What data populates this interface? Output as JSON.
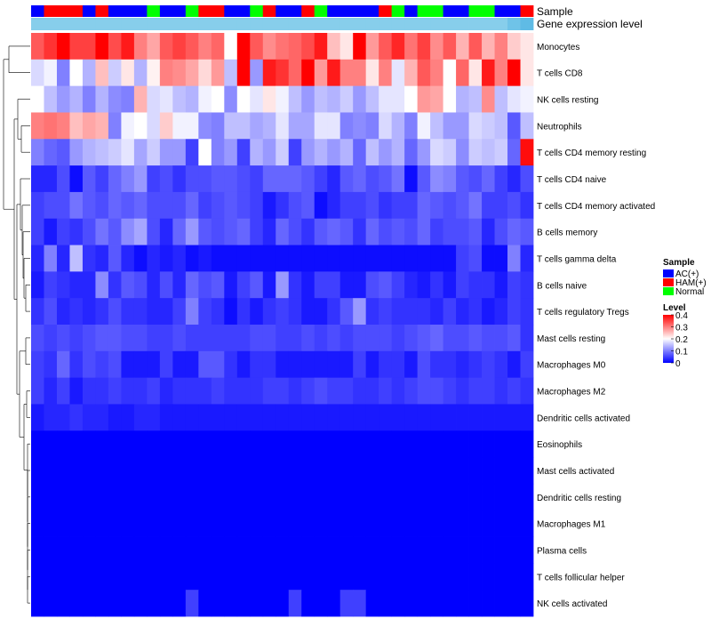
{
  "chart_data": {
    "type": "heatmap",
    "title": "",
    "annotation_labels": {
      "sample": "Sample",
      "gene_expression": "Gene expression level"
    },
    "sample_annotation": [
      "AC",
      "HAM",
      "HAM",
      "HAM",
      "AC",
      "HAM",
      "AC",
      "AC",
      "AC",
      "Normal",
      "AC",
      "AC",
      "Normal",
      "HAM",
      "HAM",
      "AC",
      "AC",
      "Normal",
      "HAM",
      "AC",
      "AC",
      "HAM",
      "Normal",
      "AC",
      "AC",
      "AC",
      "AC",
      "HAM",
      "Normal",
      "AC",
      "Normal",
      "Normal",
      "AC",
      "AC",
      "Normal",
      "Normal",
      "AC",
      "AC",
      "HAM"
    ],
    "sample_colors": {
      "AC": "#0000ff",
      "HAM": "#ff0000",
      "Normal": "#00ff00"
    },
    "expression_colors": [
      "#87ceeb",
      "#87ceeb",
      "#87ceeb",
      "#87ceeb",
      "#87ceeb",
      "#87ceeb",
      "#87ceeb",
      "#87ceeb",
      "#87ceeb",
      "#87ceeb",
      "#87ceeb",
      "#87ceeb",
      "#87ceeb",
      "#87ceeb",
      "#87ceeb",
      "#87ceeb",
      "#87ceeb",
      "#87ceeb",
      "#87ceeb",
      "#87ceeb",
      "#87ceeb",
      "#87ceeb",
      "#87ceeb",
      "#87ceeb",
      "#87ceeb",
      "#87ceeb",
      "#87ceeb",
      "#87ceeb",
      "#87ceeb",
      "#87ceeb",
      "#87ceeb",
      "#87ceeb",
      "#87ceeb",
      "#87ceeb",
      "#87ceeb",
      "#87ceeb",
      "#87ceeb",
      "#6fc3e8",
      "#5fbbe5"
    ],
    "rows": [
      {
        "label": "Monocytes",
        "values": [
          0.33,
          0.36,
          0.4,
          0.35,
          0.35,
          0.4,
          0.34,
          0.38,
          0.3,
          0.27,
          0.33,
          0.35,
          0.33,
          0.3,
          0.32,
          0.2,
          0.4,
          0.33,
          0.29,
          0.31,
          0.32,
          0.34,
          0.38,
          0.25,
          0.22,
          0.4,
          0.28,
          0.33,
          0.37,
          0.31,
          0.35,
          0.29,
          0.33,
          0.26,
          0.33,
          0.26,
          0.3,
          0.24,
          0.22
        ]
      },
      {
        "label": "T cells CD8",
        "values": [
          0.17,
          0.19,
          0.1,
          0.2,
          0.14,
          0.25,
          0.16,
          0.22,
          0.14,
          0.21,
          0.3,
          0.29,
          0.27,
          0.23,
          0.28,
          0.15,
          0.4,
          0.12,
          0.38,
          0.36,
          0.32,
          0.4,
          0.28,
          0.38,
          0.3,
          0.3,
          0.22,
          0.3,
          0.18,
          0.26,
          0.33,
          0.3,
          0.2,
          0.32,
          0.22,
          0.38,
          0.3,
          0.4,
          0.22
        ]
      },
      {
        "label": "NK cells resting",
        "values": [
          0.2,
          0.15,
          0.12,
          0.14,
          0.1,
          0.14,
          0.11,
          0.1,
          0.26,
          0.17,
          0.18,
          0.15,
          0.14,
          0.19,
          0.2,
          0.11,
          0.2,
          0.18,
          0.22,
          0.19,
          0.15,
          0.12,
          0.15,
          0.14,
          0.16,
          0.12,
          0.15,
          0.18,
          0.18,
          0.2,
          0.28,
          0.27,
          0.2,
          0.14,
          0.15,
          0.29,
          0.15,
          0.18,
          0.19
        ]
      },
      {
        "label": "Neutrophils",
        "values": [
          0.3,
          0.31,
          0.3,
          0.25,
          0.27,
          0.26,
          0.1,
          0.19,
          0.2,
          0.17,
          0.24,
          0.19,
          0.19,
          0.11,
          0.1,
          0.15,
          0.15,
          0.13,
          0.14,
          0.18,
          0.13,
          0.13,
          0.18,
          0.18,
          0.1,
          0.11,
          0.1,
          0.17,
          0.14,
          0.1,
          0.19,
          0.15,
          0.12,
          0.12,
          0.17,
          0.16,
          0.15,
          0.07,
          0.15
        ]
      },
      {
        "label": "T cells CD4 memory resting",
        "values": [
          0.1,
          0.08,
          0.07,
          0.12,
          0.14,
          0.15,
          0.16,
          0.18,
          0.13,
          0.16,
          0.12,
          0.12,
          0.05,
          0.2,
          0.1,
          0.12,
          0.05,
          0.14,
          0.12,
          0.16,
          0.05,
          0.12,
          0.14,
          0.12,
          0.14,
          0.08,
          0.15,
          0.12,
          0.14,
          0.08,
          0.12,
          0.17,
          0.16,
          0.11,
          0.16,
          0.15,
          0.16,
          0.08,
          0.39
        ]
      },
      {
        "label": "T cells CD4 naive",
        "values": [
          0.03,
          0.03,
          0.06,
          0.01,
          0.07,
          0.05,
          0.08,
          0.1,
          0.12,
          0.05,
          0.06,
          0.04,
          0.06,
          0.06,
          0.07,
          0.07,
          0.06,
          0.05,
          0.08,
          0.08,
          0.08,
          0.07,
          0.05,
          0.03,
          0.07,
          0.08,
          0.06,
          0.07,
          0.09,
          0.01,
          0.07,
          0.11,
          0.1,
          0.07,
          0.06,
          0.08,
          0.05,
          0.03,
          0.06
        ]
      },
      {
        "label": "T cells CD4 memory activated",
        "values": [
          0.05,
          0.06,
          0.06,
          0.09,
          0.07,
          0.06,
          0.08,
          0.07,
          0.08,
          0.06,
          0.06,
          0.06,
          0.08,
          0.05,
          0.06,
          0.07,
          0.06,
          0.05,
          0.02,
          0.04,
          0.06,
          0.07,
          0.01,
          0.03,
          0.05,
          0.05,
          0.06,
          0.04,
          0.05,
          0.05,
          0.08,
          0.07,
          0.06,
          0.07,
          0.09,
          0.05,
          0.05,
          0.06,
          0.04
        ]
      },
      {
        "label": "B cells memory",
        "values": [
          0.05,
          0.02,
          0.05,
          0.04,
          0.06,
          0.09,
          0.07,
          0.11,
          0.13,
          0.06,
          0.03,
          0.08,
          0.12,
          0.07,
          0.06,
          0.07,
          0.08,
          0.05,
          0.03,
          0.08,
          0.06,
          0.04,
          0.07,
          0.08,
          0.07,
          0.04,
          0.08,
          0.06,
          0.07,
          0.06,
          0.08,
          0.05,
          0.06,
          0.06,
          0.07,
          0.03,
          0.06,
          0.08,
          0.07
        ]
      },
      {
        "label": "T cells gamma delta",
        "values": [
          0.03,
          0.1,
          0.03,
          0.15,
          0.04,
          0.03,
          0.07,
          0.03,
          0.01,
          0.03,
          0.02,
          0.03,
          0.01,
          0.02,
          0.01,
          0.01,
          0.01,
          0.01,
          0.01,
          0.01,
          0.01,
          0.01,
          0.01,
          0.01,
          0.01,
          0.01,
          0.01,
          0.01,
          0.01,
          0.01,
          0.01,
          0.01,
          0.01,
          0.05,
          0.06,
          0.01,
          0.01,
          0.1,
          0.03
        ]
      },
      {
        "label": "B cells naive",
        "values": [
          0.02,
          0.05,
          0.04,
          0.03,
          0.03,
          0.11,
          0.04,
          0.07,
          0.06,
          0.03,
          0.06,
          0.03,
          0.08,
          0.06,
          0.07,
          0.02,
          0.05,
          0.07,
          0.02,
          0.12,
          0.04,
          0.02,
          0.05,
          0.05,
          0.02,
          0.02,
          0.06,
          0.07,
          0.05,
          0.03,
          0.02,
          0.04,
          0.02,
          0.05,
          0.04,
          0.04,
          0.02,
          0.05,
          0.04
        ]
      },
      {
        "label": "T cells regulatory  Tregs",
        "values": [
          0.04,
          0.06,
          0.03,
          0.04,
          0.03,
          0.04,
          0.06,
          0.04,
          0.04,
          0.03,
          0.03,
          0.05,
          0.1,
          0.05,
          0.04,
          0.01,
          0.04,
          0.02,
          0.04,
          0.05,
          0.04,
          0.02,
          0.02,
          0.04,
          0.07,
          0.12,
          0.04,
          0.05,
          0.04,
          0.04,
          0.04,
          0.03,
          0.05,
          0.03,
          0.04,
          0.02,
          0.03,
          0.05,
          0.04
        ]
      },
      {
        "label": "Mast cells resting",
        "values": [
          0.06,
          0.05,
          0.06,
          0.05,
          0.06,
          0.07,
          0.07,
          0.06,
          0.06,
          0.05,
          0.05,
          0.06,
          0.05,
          0.05,
          0.05,
          0.05,
          0.05,
          0.06,
          0.06,
          0.05,
          0.05,
          0.06,
          0.05,
          0.06,
          0.05,
          0.06,
          0.06,
          0.06,
          0.05,
          0.06,
          0.07,
          0.08,
          0.06,
          0.06,
          0.07,
          0.06,
          0.06,
          0.07,
          0.04
        ]
      },
      {
        "label": "Macrophages M0",
        "values": [
          0.05,
          0.04,
          0.08,
          0.04,
          0.06,
          0.05,
          0.06,
          0.02,
          0.02,
          0.02,
          0.05,
          0.02,
          0.02,
          0.07,
          0.07,
          0.04,
          0.02,
          0.04,
          0.04,
          0.02,
          0.02,
          0.02,
          0.02,
          0.02,
          0.02,
          0.05,
          0.02,
          0.04,
          0.04,
          0.02,
          0.06,
          0.04,
          0.04,
          0.03,
          0.04,
          0.05,
          0.04,
          0.02,
          0.05
        ]
      },
      {
        "label": "Macrophages M2",
        "values": [
          0.05,
          0.03,
          0.05,
          0.02,
          0.04,
          0.04,
          0.05,
          0.04,
          0.04,
          0.05,
          0.03,
          0.04,
          0.04,
          0.04,
          0.05,
          0.04,
          0.04,
          0.04,
          0.05,
          0.05,
          0.04,
          0.05,
          0.06,
          0.05,
          0.05,
          0.04,
          0.04,
          0.05,
          0.04,
          0.05,
          0.06,
          0.06,
          0.05,
          0.04,
          0.05,
          0.05,
          0.04,
          0.05,
          0.04
        ]
      },
      {
        "label": "Dendritic cells activated",
        "values": [
          0.02,
          0.03,
          0.03,
          0.04,
          0.03,
          0.03,
          0.02,
          0.02,
          0.03,
          0.03,
          0.02,
          0.02,
          0.02,
          0.02,
          0.02,
          0.02,
          0.02,
          0.02,
          0.02,
          0.02,
          0.02,
          0.02,
          0.02,
          0.02,
          0.02,
          0.02,
          0.02,
          0.02,
          0.02,
          0.02,
          0.02,
          0.02,
          0.02,
          0.02,
          0.02,
          0.02,
          0.02,
          0.02,
          0.02
        ]
      },
      {
        "label": "Eosinophils",
        "values": [
          0,
          0,
          0,
          0,
          0,
          0,
          0,
          0,
          0,
          0,
          0,
          0,
          0,
          0,
          0,
          0,
          0,
          0,
          0,
          0,
          0,
          0,
          0,
          0,
          0,
          0,
          0,
          0,
          0,
          0,
          0,
          0,
          0,
          0,
          0,
          0,
          0,
          0,
          0
        ]
      },
      {
        "label": "Mast cells activated",
        "values": [
          0,
          0,
          0,
          0,
          0,
          0,
          0,
          0,
          0,
          0,
          0,
          0,
          0,
          0,
          0,
          0,
          0,
          0,
          0,
          0,
          0,
          0,
          0,
          0,
          0,
          0,
          0,
          0,
          0,
          0,
          0,
          0,
          0,
          0,
          0,
          0,
          0,
          0,
          0
        ]
      },
      {
        "label": "Dendritic cells resting",
        "values": [
          0,
          0,
          0,
          0,
          0,
          0,
          0,
          0,
          0,
          0,
          0,
          0,
          0,
          0,
          0,
          0,
          0,
          0,
          0,
          0,
          0,
          0,
          0,
          0,
          0,
          0,
          0,
          0,
          0,
          0,
          0,
          0,
          0,
          0,
          0,
          0,
          0,
          0,
          0
        ]
      },
      {
        "label": "Macrophages M1",
        "values": [
          0,
          0,
          0,
          0,
          0,
          0,
          0,
          0,
          0,
          0,
          0,
          0,
          0,
          0,
          0,
          0,
          0,
          0,
          0,
          0,
          0,
          0,
          0,
          0,
          0,
          0,
          0,
          0,
          0,
          0,
          0,
          0,
          0,
          0,
          0,
          0,
          0,
          0,
          0
        ]
      },
      {
        "label": "Plasma cells",
        "values": [
          0,
          0,
          0,
          0,
          0,
          0,
          0,
          0,
          0,
          0,
          0,
          0,
          0,
          0,
          0,
          0,
          0,
          0,
          0,
          0,
          0,
          0,
          0,
          0,
          0,
          0,
          0,
          0,
          0,
          0,
          0,
          0,
          0,
          0,
          0,
          0,
          0,
          0,
          0
        ]
      },
      {
        "label": "T cells follicular helper",
        "values": [
          0,
          0,
          0,
          0,
          0,
          0,
          0,
          0,
          0,
          0,
          0,
          0,
          0,
          0,
          0,
          0,
          0,
          0,
          0,
          0,
          0,
          0,
          0,
          0,
          0,
          0,
          0,
          0,
          0,
          0,
          0,
          0,
          0,
          0,
          0,
          0,
          0,
          0,
          0
        ]
      },
      {
        "label": "NK cells activated",
        "values": [
          0,
          0,
          0,
          0,
          0,
          0,
          0,
          0,
          0,
          0,
          0,
          0,
          0.05,
          0,
          0,
          0,
          0,
          0,
          0,
          0,
          0.05,
          0,
          0,
          0,
          0.05,
          0.05,
          0,
          0,
          0,
          0,
          0,
          0,
          0,
          0,
          0,
          0,
          0,
          0,
          0
        ]
      }
    ],
    "legend": {
      "sample_title": "Sample",
      "sample_entries": [
        {
          "label": "AC(+)",
          "color": "#0000ff"
        },
        {
          "label": "HAM(+)",
          "color": "#ff0000"
        },
        {
          "label": "Normal",
          "color": "#00ff00"
        }
      ],
      "level_title": "Level",
      "level_ticks": [
        "0.4",
        "0.3",
        "0.2",
        "0.1",
        "0"
      ],
      "level_range": [
        0,
        0.4
      ]
    },
    "color_scale": {
      "low": "#0000ff",
      "mid": "#ffffff",
      "high": "#ff0000",
      "domain": [
        0,
        0.2,
        0.4
      ]
    }
  }
}
